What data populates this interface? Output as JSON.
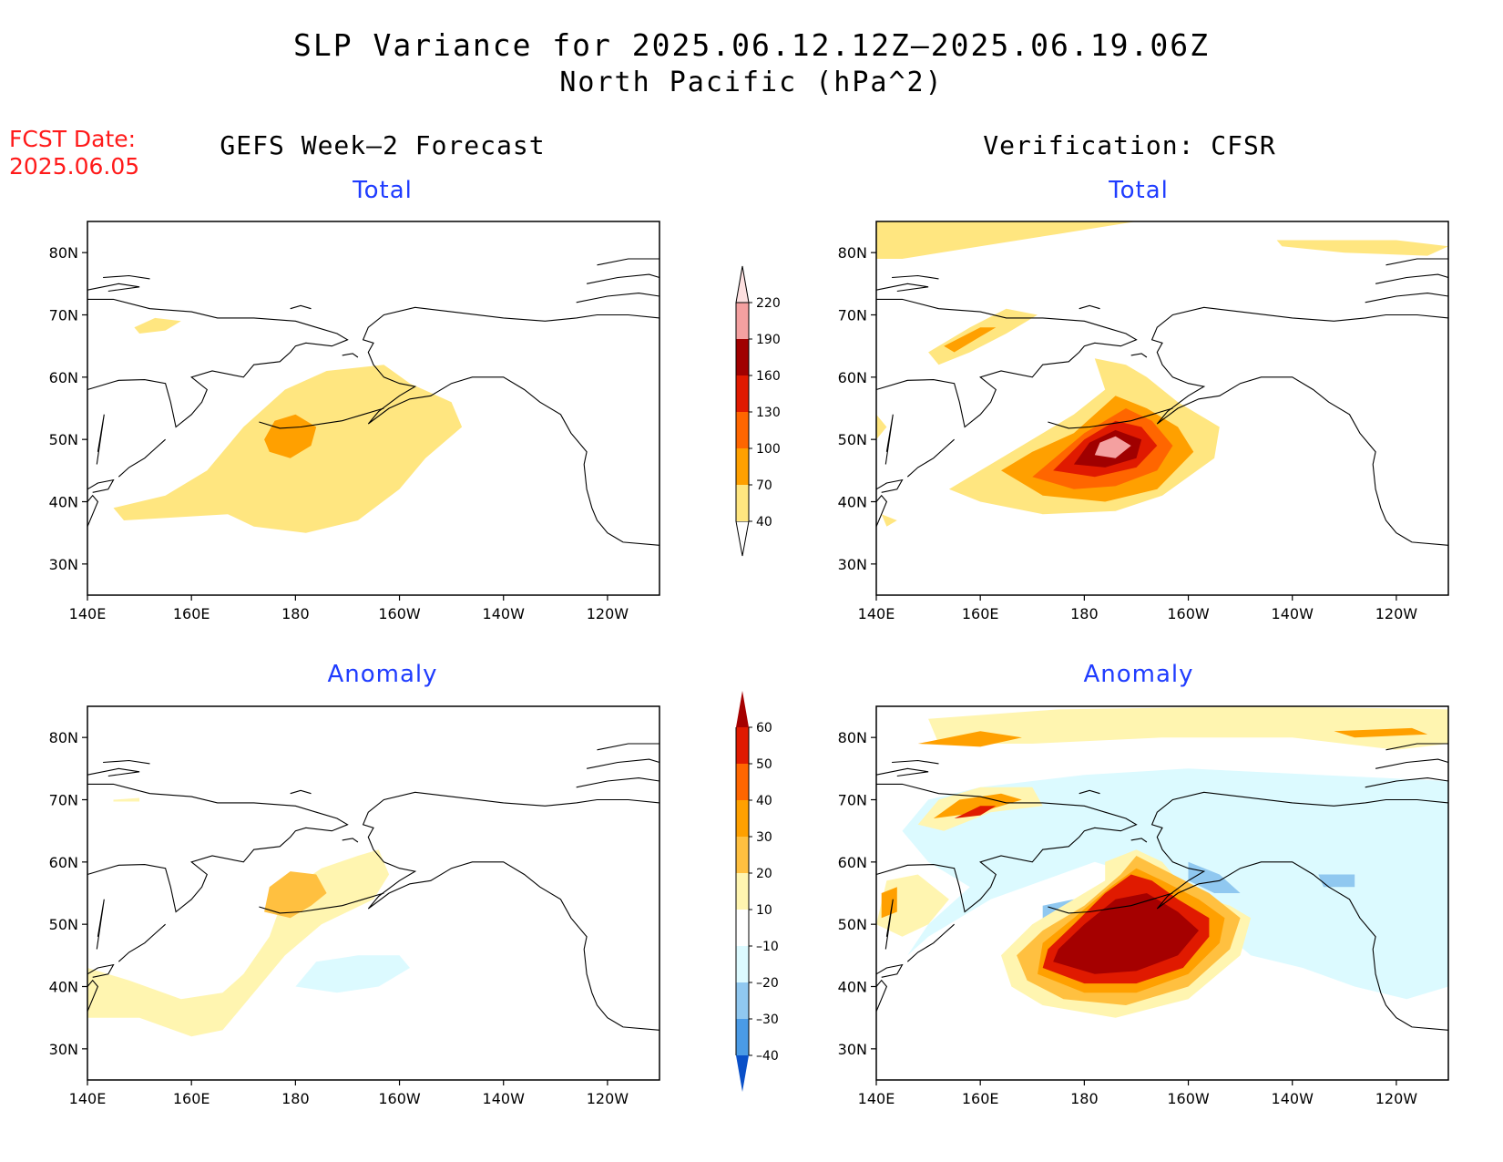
{
  "title": {
    "line1": "SLP Variance for 2025.06.12.12Z–2025.06.19.06Z",
    "line2": "North Pacific (hPa^2)"
  },
  "fcst_date": {
    "label": "FCST Date:",
    "value": "2025.06.05"
  },
  "columns": {
    "left": {
      "title": "GEFS Week–2 Forecast"
    },
    "right": {
      "title": "Verification: CFSR"
    }
  },
  "panels": {
    "forecast_total": {
      "subtitle": "Total"
    },
    "forecast_anomaly": {
      "subtitle": "Anomaly"
    },
    "verification_total": {
      "subtitle": "Total"
    },
    "verification_anomaly": {
      "subtitle": "Anomaly"
    }
  },
  "axes": {
    "lon_labels": [
      "140E",
      "160E",
      "180",
      "160W",
      "140W",
      "120W"
    ],
    "lat_labels": [
      "80N",
      "70N",
      "60N",
      "50N",
      "40N",
      "30N"
    ],
    "lon_range_deg_east": [
      140,
      250
    ],
    "lat_range": [
      25,
      85
    ]
  },
  "colorbars": {
    "total": {
      "levels": [
        "40",
        "70",
        "100",
        "130",
        "160",
        "190",
        "220"
      ],
      "colors": [
        "#ffe680",
        "#ffa000",
        "#ff6600",
        "#e01a00",
        "#a00000",
        "#f4a0a0",
        "#fde0e0"
      ]
    },
    "anomaly": {
      "levels": [
        "60",
        "50",
        "40",
        "30",
        "20",
        "10",
        "–10",
        "–20",
        "–30",
        "–40"
      ],
      "colors": [
        "#a50000",
        "#e01a00",
        "#ff6600",
        "#ffa000",
        "#ffc040",
        "#fff5b0",
        "#ffffff",
        "#dcfaff",
        "#90c8f0",
        "#4a9be6",
        "#1e6fdd",
        "#0a50c8"
      ]
    }
  },
  "chart_data": [
    {
      "type": "heatmap",
      "title": "GEFS Week–2 Forecast — Total",
      "units": "hPa^2",
      "features": [
        {
          "region": "broad band 36N–62N, 165E–150W",
          "value_range": [
            40,
            70
          ]
        },
        {
          "region": "center near 50N, 177E",
          "value_range": [
            70,
            100
          ]
        },
        {
          "region": "small patch near 68N, 152E",
          "value_range": [
            40,
            70
          ]
        }
      ]
    },
    {
      "type": "heatmap",
      "title": "GEFS Week–2 Forecast — Anomaly",
      "units": "hPa^2",
      "features": [
        {
          "region": "band 32N–60N, 140E–160W",
          "value_range": [
            10,
            20
          ]
        },
        {
          "region": "center near 53N, 178E",
          "value_range": [
            20,
            30
          ]
        },
        {
          "region": "patch near 42N, 170W",
          "value_range": [
            -20,
            -10
          ]
        }
      ]
    },
    {
      "type": "heatmap",
      "title": "Verification: CFSR — Total",
      "units": "hPa^2",
      "features": [
        {
          "region": "max near 49N, 173W",
          "value_range": [
            190,
            220
          ]
        },
        {
          "region": "surrounding core 44N–53N, 178E–165W",
          "value_range": [
            160,
            190
          ]
        },
        {
          "region": "broad area 40N–62N, 155E–150W",
          "value_range": [
            40,
            130
          ]
        },
        {
          "region": "band near 80N–85N",
          "value_range": [
            40,
            70
          ]
        },
        {
          "region": "patch near 66N, 155E",
          "value_range": [
            70,
            100
          ]
        }
      ]
    },
    {
      "type": "heatmap",
      "title": "Verification: CFSR — Anomaly",
      "units": "hPa^2",
      "features": [
        {
          "region": "large core 42N–57N, 178E–160W",
          "value_range": [
            50,
            60
          ]
        },
        {
          "region": "patch near 67N, 157E",
          "value_range": [
            40,
            60
          ]
        },
        {
          "region": "negative area over Alaska/Gulf 40N–72N, 160W–110W",
          "value_range": [
            -20,
            -10
          ]
        },
        {
          "region": "patch near 52N, 175E",
          "value_range": [
            -30,
            -20
          ]
        },
        {
          "region": "band near 80N",
          "value_range": [
            10,
            30
          ]
        }
      ]
    }
  ]
}
